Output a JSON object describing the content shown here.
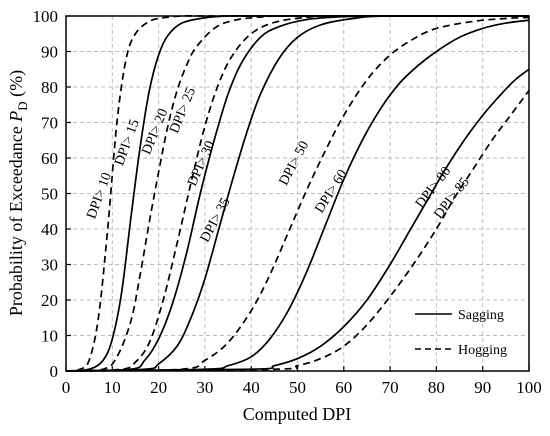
{
  "chart_data": {
    "type": "line",
    "xlabel": "Computed DPI",
    "ylabel": "Probability of Exceedance",
    "ylabel_symbol": "P",
    "ylabel_subscript": "D",
    "ylabel_unit": "(%)",
    "xlim": [
      0,
      100
    ],
    "ylim": [
      0,
      100
    ],
    "xticks": [
      0,
      10,
      20,
      30,
      40,
      50,
      60,
      70,
      80,
      90,
      100
    ],
    "yticks": [
      0,
      10,
      20,
      30,
      40,
      50,
      60,
      70,
      80,
      90,
      100
    ],
    "grid": true,
    "legend": {
      "placement": "bottom-right",
      "entries": [
        {
          "name": "Sagging",
          "style": "solid"
        },
        {
          "name": "Hogging",
          "style": "dashed"
        }
      ]
    },
    "series": [
      {
        "name": "DPI> 10",
        "style": "dashed",
        "x": [
          0,
          3,
          5,
          7,
          9,
          11,
          13,
          15,
          18,
          21,
          25,
          30,
          40,
          100
        ],
        "y": [
          0,
          0.5,
          3,
          15,
          40,
          70,
          88,
          95,
          98.5,
          99.5,
          100,
          100,
          100,
          100
        ]
      },
      {
        "name": "DPI> 15",
        "style": "solid",
        "x": [
          0,
          5,
          8,
          10,
          12,
          14,
          16,
          18,
          20,
          22,
          25,
          30,
          35,
          45,
          100
        ],
        "y": [
          0,
          0.5,
          3,
          9,
          22,
          43,
          63,
          79,
          89,
          94.5,
          98,
          99.5,
          100,
          100,
          100
        ]
      },
      {
        "name": "DPI> 20",
        "style": "dashed",
        "x": [
          0,
          8,
          11,
          14,
          16,
          18,
          20,
          22,
          24,
          26,
          28,
          32,
          36,
          42,
          50,
          100
        ],
        "y": [
          0,
          0.5,
          4,
          14,
          27,
          42,
          56,
          69,
          79,
          86,
          91,
          96.5,
          98.7,
          99.7,
          100,
          100
        ]
      },
      {
        "name": "DPI> 25",
        "style": "dashed",
        "x": [
          0,
          12,
          15,
          18,
          21,
          24,
          27,
          30,
          33,
          36,
          40,
          45,
          52,
          60,
          100
        ],
        "y": [
          0,
          0.5,
          2.5,
          8,
          20,
          36,
          53,
          69,
          81,
          89,
          95,
          98.2,
          99.6,
          100,
          100
        ]
      },
      {
        "name": "DPI> 30",
        "style": "solid",
        "x": [
          0,
          14,
          17,
          20,
          23,
          26,
          29,
          32,
          35,
          38,
          42,
          46,
          52,
          60,
          70,
          100
        ],
        "y": [
          0,
          0.5,
          3,
          9,
          19,
          33,
          50,
          65,
          78,
          87,
          94,
          97,
          99,
          99.8,
          100,
          100
        ]
      },
      {
        "name": "DPI> 35",
        "style": "solid",
        "x": [
          0,
          17,
          20,
          24,
          27,
          30,
          33,
          36,
          39,
          42,
          46,
          50,
          55,
          62,
          70,
          100
        ],
        "y": [
          0,
          0.5,
          2,
          7,
          15,
          26,
          40,
          54,
          67,
          78,
          88,
          94,
          97.5,
          99.3,
          100,
          100
        ]
      },
      {
        "name": "DPI> 50",
        "style": "dashed",
        "x": [
          0,
          25,
          30,
          35,
          40,
          44,
          48,
          52,
          56,
          60,
          65,
          70,
          75,
          80,
          88,
          95,
          100
        ],
        "y": [
          0,
          0.5,
          3,
          8,
          17,
          27,
          39,
          51,
          62,
          72,
          82,
          89,
          93.5,
          96.5,
          98.5,
          99.3,
          99.6
        ]
      },
      {
        "name": "DPI> 60",
        "style": "solid",
        "x": [
          0,
          30,
          35,
          40,
          44,
          48,
          52,
          56,
          60,
          64,
          68,
          72,
          76,
          80,
          85,
          90,
          95,
          100
        ],
        "y": [
          0,
          0.5,
          1.5,
          4,
          9,
          17,
          28,
          41,
          54,
          65,
          74,
          81,
          86,
          90,
          94,
          96.5,
          98,
          98.8
        ]
      },
      {
        "name": "DPI> 80",
        "style": "solid",
        "x": [
          0,
          40,
          45,
          50,
          55,
          60,
          65,
          70,
          74,
          78,
          82,
          86,
          90,
          94,
          97,
          100
        ],
        "y": [
          0,
          0.5,
          1.5,
          3.5,
          7,
          12.5,
          20,
          30,
          39,
          48,
          57,
          65,
          72,
          78,
          82,
          85
        ]
      },
      {
        "name": "DPI> 85",
        "style": "dashed",
        "x": [
          0,
          45,
          50,
          55,
          60,
          65,
          70,
          75,
          80,
          84,
          88,
          92,
          96,
          100
        ],
        "y": [
          0,
          0.5,
          1.5,
          3.5,
          7,
          13,
          21,
          30,
          40,
          49,
          57,
          65,
          72,
          79
        ]
      }
    ],
    "curve_labels": [
      {
        "text": "DPI> 10",
        "x": 8,
        "y": 49,
        "angle": -70
      },
      {
        "text": "DPI> 15",
        "x": 14,
        "y": 64,
        "angle": -70
      },
      {
        "text": "DPI> 20",
        "x": 20,
        "y": 67,
        "angle": -68
      },
      {
        "text": "DPI> 25",
        "x": 26,
        "y": 73,
        "angle": -68
      },
      {
        "text": "DPI> 30",
        "x": 30,
        "y": 58,
        "angle": -66
      },
      {
        "text": "DPI> 35",
        "x": 33,
        "y": 42,
        "angle": -62
      },
      {
        "text": "DPI> 50",
        "x": 50,
        "y": 58,
        "angle": -62
      },
      {
        "text": "DPI> 60",
        "x": 58,
        "y": 50,
        "angle": -58
      },
      {
        "text": "DPI> 80",
        "x": 80,
        "y": 51,
        "angle": -52
      },
      {
        "text": "DPI> 85",
        "x": 84,
        "y": 48,
        "angle": -52
      }
    ]
  }
}
